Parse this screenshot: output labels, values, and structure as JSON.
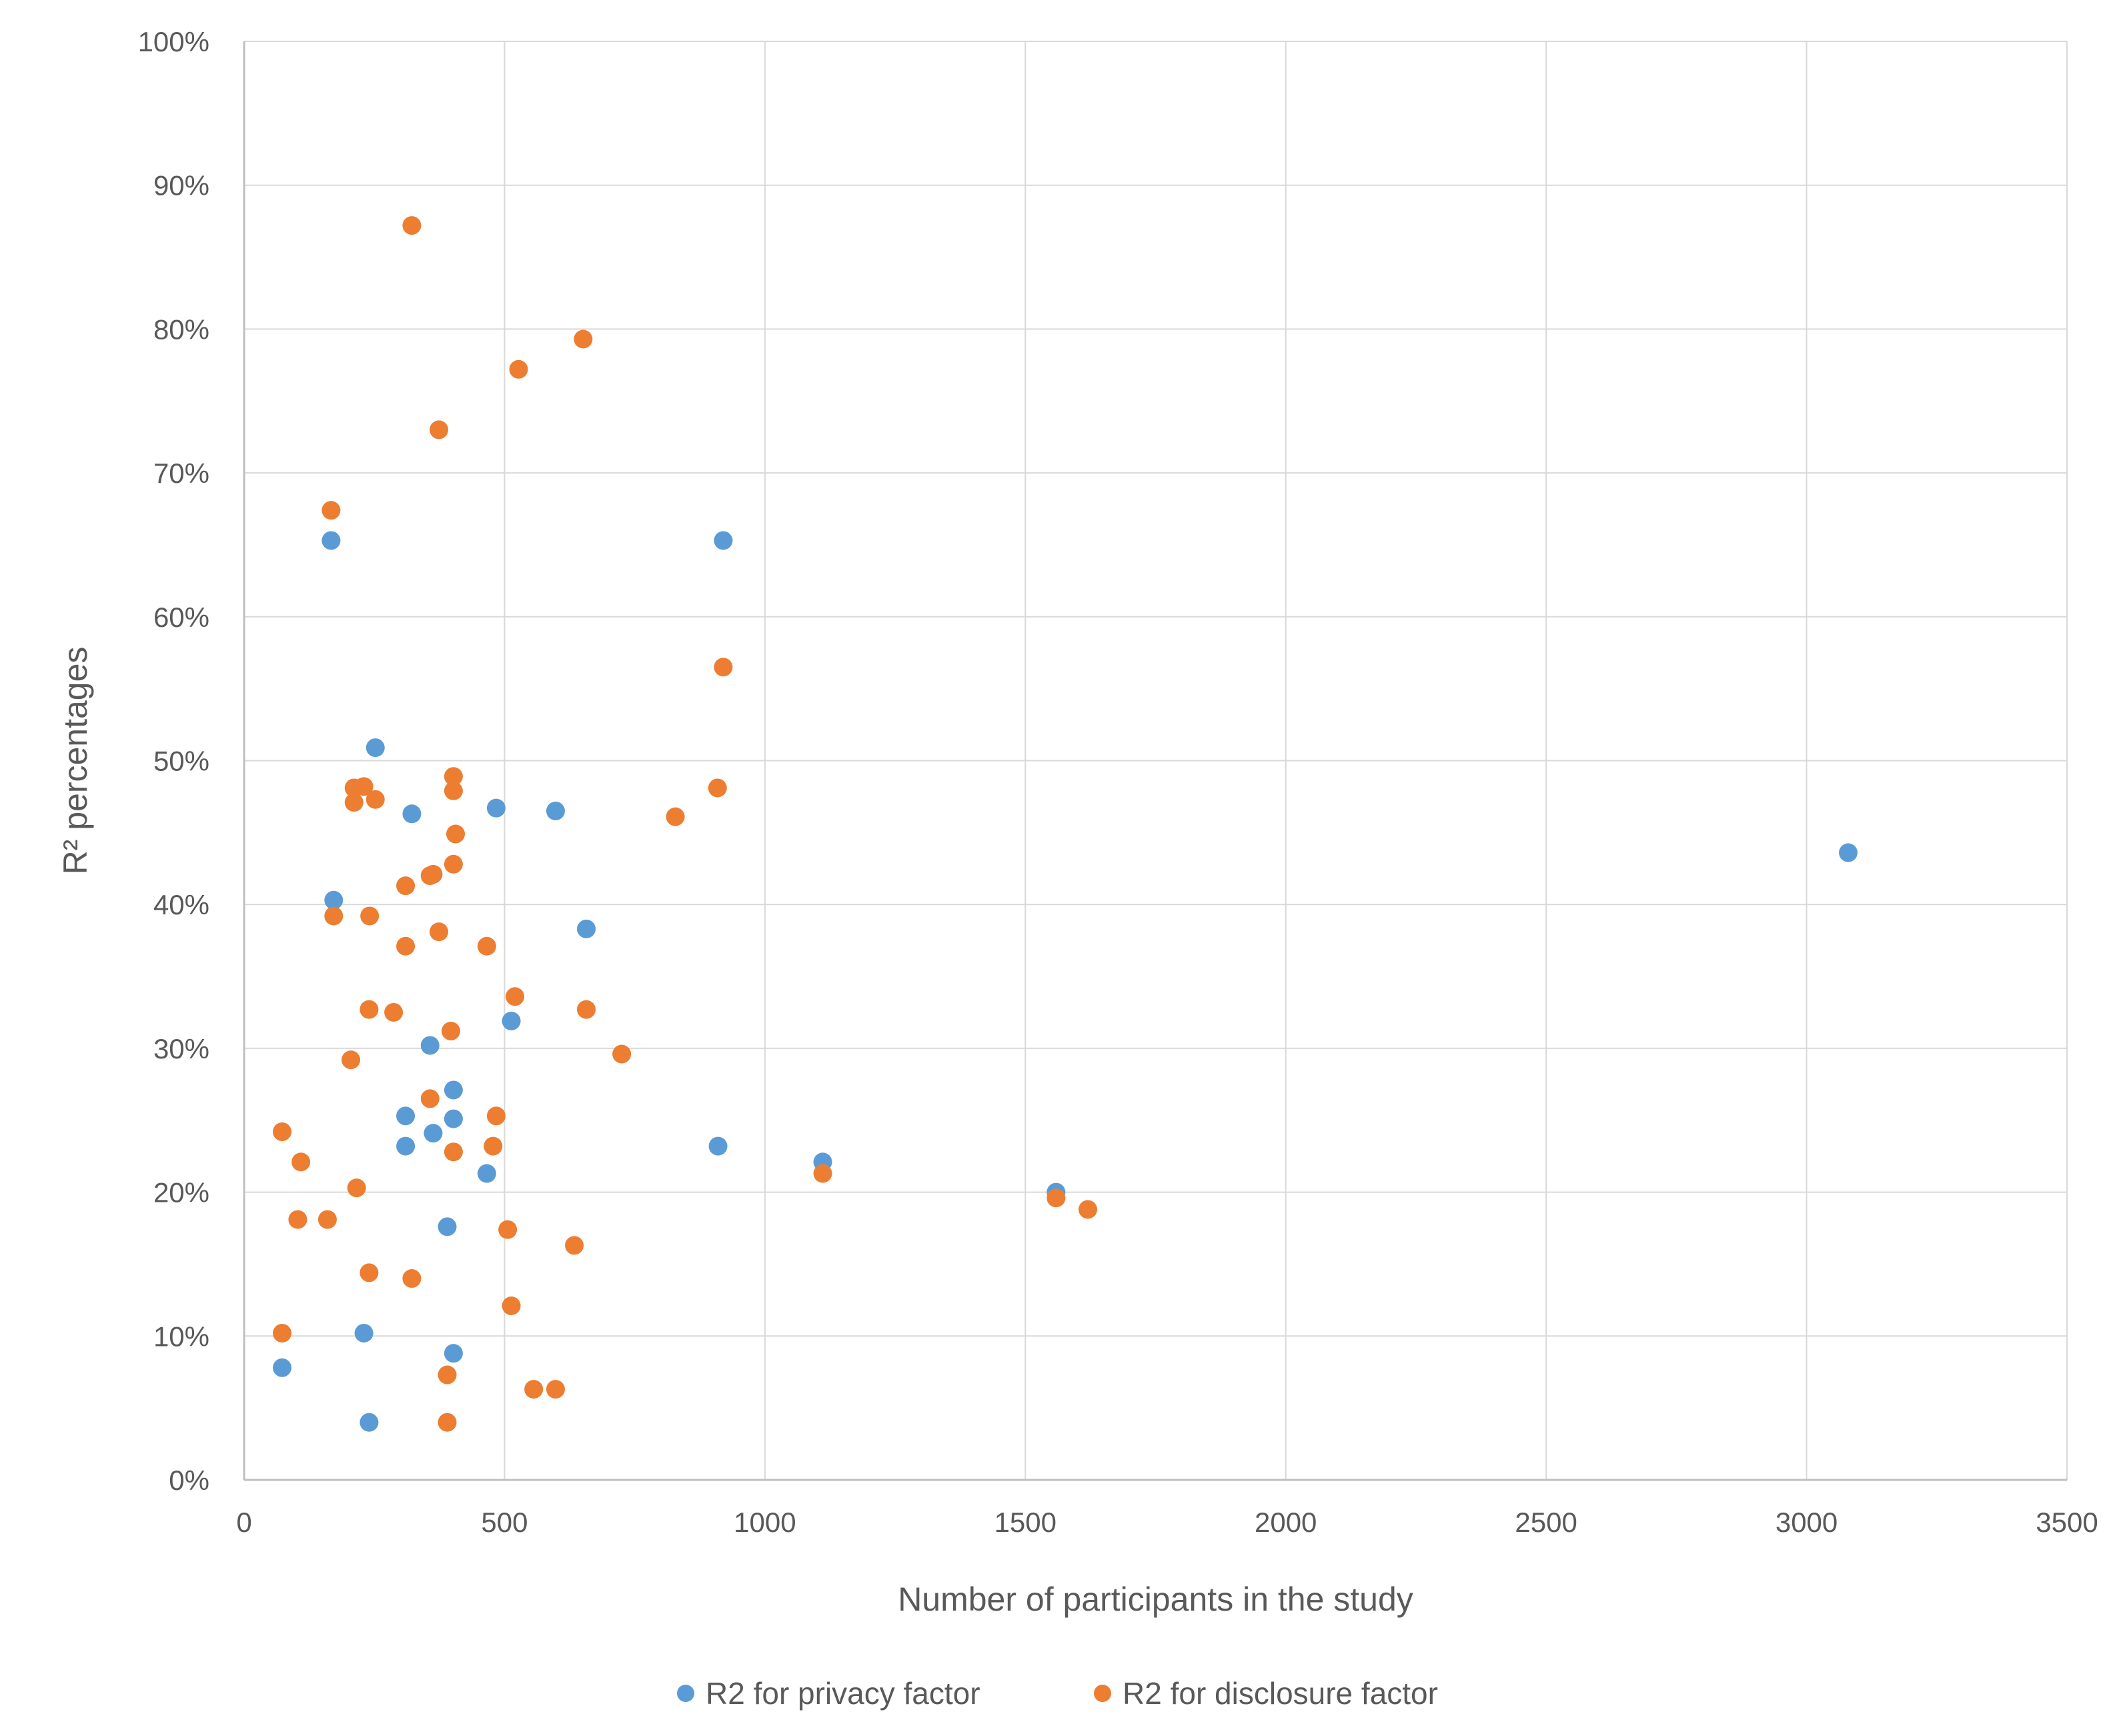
{
  "chart_data": {
    "type": "scatter",
    "title": "",
    "xlabel": "Number of participants in the study",
    "ylabel": "R² percentages",
    "xlim": [
      0,
      3500
    ],
    "ylim": [
      0,
      100
    ],
    "x_ticks": [
      0,
      500,
      1000,
      1500,
      2000,
      2500,
      3000,
      3500
    ],
    "x_tick_labels": [
      "0",
      "500",
      "1000",
      "1500",
      "2000",
      "2500",
      "3000",
      "3500"
    ],
    "y_ticks": [
      0,
      10,
      20,
      30,
      40,
      50,
      60,
      70,
      80,
      90,
      100
    ],
    "y_tick_labels": [
      "0%",
      "10%",
      "20%",
      "30%",
      "40%",
      "50%",
      "60%",
      "70%",
      "80%",
      "90%",
      "100%"
    ],
    "grid": true,
    "legend_position": "bottom",
    "series": [
      {
        "name": "R2 for privacy factor",
        "color": "#5b9bd5",
        "points": [
          [
            167,
            65.3
          ],
          [
            920,
            65.3
          ],
          [
            252,
            50.9
          ],
          [
            322,
            46.3
          ],
          [
            484,
            46.7
          ],
          [
            598,
            46.5
          ],
          [
            3080,
            43.6
          ],
          [
            172,
            40.3
          ],
          [
            657,
            38.3
          ],
          [
            513,
            31.9
          ],
          [
            357,
            30.2
          ],
          [
            402,
            27.1
          ],
          [
            310,
            25.3
          ],
          [
            402,
            25.1
          ],
          [
            363,
            24.1
          ],
          [
            310,
            23.2
          ],
          [
            910,
            23.2
          ],
          [
            466,
            21.3
          ],
          [
            1111,
            22.1
          ],
          [
            1559,
            20.0
          ],
          [
            390,
            17.6
          ],
          [
            230,
            10.2
          ],
          [
            402,
            8.8
          ],
          [
            73,
            7.8
          ],
          [
            240,
            4.0
          ]
        ]
      },
      {
        "name": "R2 for disclosure factor",
        "color": "#ed7d31",
        "points": [
          [
            322,
            87.2
          ],
          [
            651,
            79.3
          ],
          [
            527,
            77.2
          ],
          [
            374,
            73.0
          ],
          [
            167,
            67.4
          ],
          [
            920,
            56.5
          ],
          [
            402,
            48.9
          ],
          [
            211,
            48.1
          ],
          [
            230,
            48.2
          ],
          [
            402,
            47.9
          ],
          [
            909,
            48.1
          ],
          [
            211,
            47.1
          ],
          [
            252,
            47.3
          ],
          [
            828,
            46.1
          ],
          [
            406,
            44.9
          ],
          [
            402,
            42.8
          ],
          [
            357,
            42.0
          ],
          [
            363,
            42.1
          ],
          [
            310,
            41.3
          ],
          [
            172,
            39.2
          ],
          [
            241,
            39.2
          ],
          [
            374,
            38.1
          ],
          [
            310,
            37.1
          ],
          [
            466,
            37.1
          ],
          [
            520,
            33.6
          ],
          [
            240,
            32.7
          ],
          [
            287,
            32.5
          ],
          [
            657,
            32.7
          ],
          [
            397,
            31.2
          ],
          [
            725,
            29.6
          ],
          [
            205,
            29.2
          ],
          [
            357,
            26.5
          ],
          [
            484,
            25.3
          ],
          [
            73,
            24.2
          ],
          [
            478,
            23.2
          ],
          [
            402,
            22.8
          ],
          [
            109,
            22.1
          ],
          [
            1111,
            21.3
          ],
          [
            216,
            20.3
          ],
          [
            1559,
            19.6
          ],
          [
            1620,
            18.8
          ],
          [
            103,
            18.1
          ],
          [
            160,
            18.1
          ],
          [
            506,
            17.4
          ],
          [
            634,
            16.3
          ],
          [
            240,
            14.4
          ],
          [
            322,
            14.0
          ],
          [
            513,
            12.1
          ],
          [
            73,
            10.2
          ],
          [
            390,
            7.3
          ],
          [
            556,
            6.3
          ],
          [
            598,
            6.3
          ],
          [
            390,
            4.0
          ]
        ]
      }
    ]
  }
}
